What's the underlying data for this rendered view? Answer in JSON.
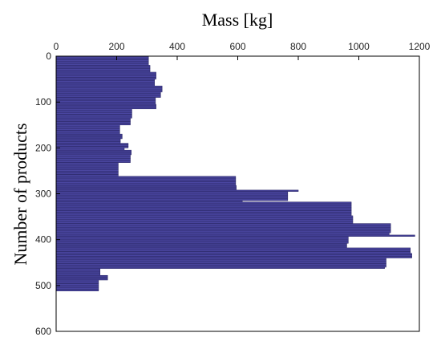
{
  "chart_data": {
    "type": "bar",
    "orientation": "horizontal",
    "title": "",
    "xlabel": "Mass [kg]",
    "ylabel": "Number of products",
    "xlim": [
      0,
      1200
    ],
    "ylim": [
      0,
      600
    ],
    "y_inverted": true,
    "x_axis_position": "top",
    "x_ticks": [
      0,
      200,
      400,
      600,
      800,
      1000,
      1200
    ],
    "y_ticks": [
      0,
      100,
      200,
      300,
      400,
      500,
      600
    ],
    "grid": false,
    "bar_color": "#4a46a0",
    "bar_edge_color": "#2a2766",
    "segments": [
      {
        "from": 0,
        "to": 20,
        "value": 305
      },
      {
        "from": 20,
        "to": 35,
        "value": 310
      },
      {
        "from": 35,
        "to": 50,
        "value": 330
      },
      {
        "from": 50,
        "to": 65,
        "value": 325
      },
      {
        "from": 65,
        "to": 78,
        "value": 350
      },
      {
        "from": 78,
        "to": 90,
        "value": 345
      },
      {
        "from": 90,
        "to": 105,
        "value": 328
      },
      {
        "from": 105,
        "to": 115,
        "value": 330
      },
      {
        "from": 115,
        "to": 135,
        "value": 250
      },
      {
        "from": 135,
        "to": 150,
        "value": 245
      },
      {
        "from": 150,
        "to": 170,
        "value": 210
      },
      {
        "from": 170,
        "to": 180,
        "value": 218
      },
      {
        "from": 180,
        "to": 190,
        "value": 212
      },
      {
        "from": 190,
        "to": 200,
        "value": 238
      },
      {
        "from": 200,
        "to": 205,
        "value": 225
      },
      {
        "from": 205,
        "to": 215,
        "value": 248
      },
      {
        "from": 215,
        "to": 232,
        "value": 245
      },
      {
        "from": 232,
        "to": 262,
        "value": 205
      },
      {
        "from": 262,
        "to": 282,
        "value": 593
      },
      {
        "from": 282,
        "to": 292,
        "value": 595
      },
      {
        "from": 292,
        "to": 295,
        "value": 800
      },
      {
        "from": 295,
        "to": 315,
        "value": 765
      },
      {
        "from": 315,
        "to": 318,
        "value": 615
      },
      {
        "from": 318,
        "to": 348,
        "value": 975
      },
      {
        "from": 348,
        "to": 365,
        "value": 980
      },
      {
        "from": 365,
        "to": 385,
        "value": 1105
      },
      {
        "from": 385,
        "to": 390,
        "value": 1100
      },
      {
        "from": 390,
        "to": 393,
        "value": 1185
      },
      {
        "from": 393,
        "to": 408,
        "value": 965
      },
      {
        "from": 408,
        "to": 418,
        "value": 960
      },
      {
        "from": 418,
        "to": 430,
        "value": 1170
      },
      {
        "from": 430,
        "to": 440,
        "value": 1175
      },
      {
        "from": 440,
        "to": 460,
        "value": 1090
      },
      {
        "from": 460,
        "to": 463,
        "value": 1085
      },
      {
        "from": 463,
        "to": 478,
        "value": 145
      },
      {
        "from": 478,
        "to": 488,
        "value": 170
      },
      {
        "from": 488,
        "to": 512,
        "value": 140
      }
    ]
  }
}
